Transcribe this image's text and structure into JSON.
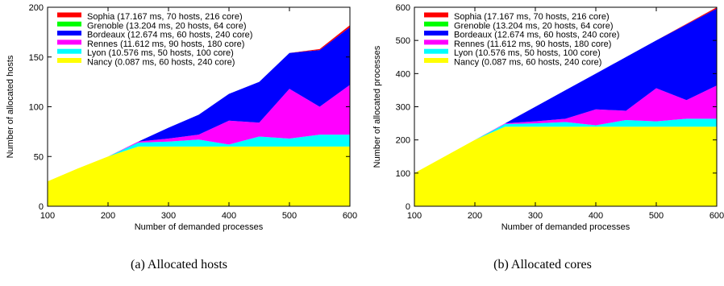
{
  "chart_data": [
    {
      "type": "area",
      "stacked": true,
      "caption": "(a)  Allocated hosts",
      "xlabel": "Number of demanded processes",
      "ylabel": "Number of allocated hosts",
      "xlim": [
        100,
        600
      ],
      "ylim": [
        0,
        200
      ],
      "xticks": [
        "100",
        "200",
        "300",
        "400",
        "500",
        "600"
      ],
      "yticks": [
        "0",
        "50",
        "100",
        "150",
        "200"
      ],
      "grid": false,
      "legend_position": "top-left",
      "x": [
        100,
        150,
        200,
        250,
        300,
        350,
        400,
        450,
        500,
        550,
        600
      ],
      "series": [
        {
          "name": "Nancy (0.087 ms, 60 hosts, 240 core)",
          "color": "#ffff00",
          "values": [
            25,
            38,
            50,
            60,
            60,
            60,
            60,
            60,
            60,
            60,
            60
          ]
        },
        {
          "name": "Lyon (10.576 ms, 50 hosts, 100 core)",
          "color": "#00ffff",
          "values": [
            0,
            0,
            0,
            4,
            5,
            7,
            2,
            10,
            8,
            12,
            12
          ]
        },
        {
          "name": "Rennes (11.612 ms, 90 hosts, 180 core)",
          "color": "#ff00ff",
          "values": [
            0,
            0,
            0,
            1,
            3,
            5,
            24,
            14,
            50,
            28,
            50
          ]
        },
        {
          "name": "Bordeaux (12.674 ms, 60 hosts, 240 core)",
          "color": "#0000ff",
          "values": [
            0,
            0,
            0,
            0,
            11,
            20,
            27,
            41,
            36,
            57,
            58
          ]
        },
        {
          "name": "Grenoble (13.204 ms, 20 hosts, 64 core)",
          "color": "#00ff00",
          "values": [
            0,
            0,
            0,
            0,
            0,
            0,
            0,
            0,
            0,
            0,
            0
          ]
        },
        {
          "name": "Sophia (17.167 ms, 70 hosts, 216 core)",
          "color": "#ff0000",
          "values": [
            0,
            0,
            0,
            0,
            0,
            0,
            0,
            0,
            0,
            1,
            2
          ]
        }
      ]
    },
    {
      "type": "area",
      "stacked": true,
      "caption": "(b)  Allocated cores",
      "xlabel": "Number of demanded processes",
      "ylabel": "Number of allocated processes",
      "xlim": [
        100,
        600
      ],
      "ylim": [
        0,
        600
      ],
      "xticks": [
        "100",
        "200",
        "300",
        "400",
        "500",
        "600"
      ],
      "yticks": [
        "0",
        "100",
        "200",
        "300",
        "400",
        "500",
        "600"
      ],
      "grid": false,
      "legend_position": "top-left",
      "x": [
        100,
        150,
        200,
        250,
        300,
        350,
        400,
        450,
        500,
        550,
        600
      ],
      "series": [
        {
          "name": "Nancy (0.087 ms, 60 hosts, 240 core)",
          "color": "#ffff00",
          "values": [
            100,
            150,
            200,
            240,
            240,
            240,
            240,
            240,
            240,
            240,
            240
          ]
        },
        {
          "name": "Lyon (10.576 ms, 50 hosts, 100 core)",
          "color": "#00ffff",
          "values": [
            0,
            0,
            0,
            8,
            10,
            14,
            4,
            20,
            16,
            24,
            24
          ]
        },
        {
          "name": "Rennes (11.612 ms, 90 hosts, 180 core)",
          "color": "#ff00ff",
          "values": [
            0,
            0,
            0,
            2,
            6,
            10,
            48,
            28,
            100,
            56,
            100
          ]
        },
        {
          "name": "Bordeaux (12.674 ms, 60 hosts, 240 core)",
          "color": "#0000ff",
          "values": [
            0,
            0,
            0,
            0,
            44,
            86,
            108,
            162,
            144,
            228,
            232
          ]
        },
        {
          "name": "Grenoble (13.204 ms, 20 hosts, 64 core)",
          "color": "#00ff00",
          "values": [
            0,
            0,
            0,
            0,
            0,
            0,
            0,
            0,
            0,
            0,
            0
          ]
        },
        {
          "name": "Sophia (17.167 ms, 70 hosts, 216 core)",
          "color": "#ff0000",
          "values": [
            0,
            0,
            0,
            0,
            0,
            0,
            0,
            0,
            0,
            2,
            4
          ]
        }
      ]
    }
  ]
}
